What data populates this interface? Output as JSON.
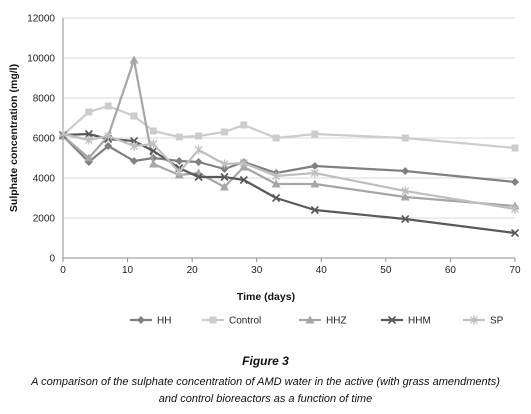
{
  "figure": {
    "title": "Figure 3",
    "caption_line1": "A comparison of the sulphate concentration of AMD water in the active (with grass amendments)",
    "caption_line2": "and control bioreactors as a function of time"
  },
  "chart_data": {
    "type": "line",
    "xlabel": "Time (days)",
    "ylabel": "Sulphate concentration (mg/l)",
    "xlim": [
      0,
      70
    ],
    "ylim": [
      0,
      12000
    ],
    "x_ticks": [
      0,
      10,
      20,
      30,
      40,
      50,
      60,
      70
    ],
    "y_ticks": [
      0,
      2000,
      4000,
      6000,
      8000,
      10000,
      12000
    ],
    "grid": "horizontal",
    "legend_position": "bottom",
    "series": [
      {
        "name": "HH",
        "color": "#808080",
        "marker": "diamond",
        "x": [
          0,
          4,
          7,
          11,
          14,
          18,
          21,
          25,
          28,
          33,
          39,
          53,
          70
        ],
        "y": [
          6100,
          4800,
          5600,
          4850,
          5000,
          4850,
          4800,
          4450,
          4800,
          4250,
          4600,
          4350,
          3800
        ]
      },
      {
        "name": "Control",
        "color": "#cccccc",
        "marker": "square",
        "x": [
          0,
          4,
          7,
          11,
          14,
          18,
          21,
          25,
          28,
          33,
          39,
          53,
          70
        ],
        "y": [
          6150,
          7300,
          7600,
          7100,
          6350,
          6050,
          6100,
          6300,
          6650,
          6000,
          6200,
          6000,
          5500
        ]
      },
      {
        "name": "HHZ",
        "color": "#a6a6a6",
        "marker": "triangle",
        "x": [
          0,
          4,
          7,
          11,
          14,
          18,
          21,
          25,
          28,
          33,
          39,
          53,
          70
        ],
        "y": [
          6100,
          5000,
          6100,
          9900,
          4700,
          4150,
          4250,
          3550,
          4550,
          3700,
          3700,
          3050,
          2600
        ]
      },
      {
        "name": "HHM",
        "color": "#595959",
        "marker": "x",
        "x": [
          0,
          4,
          7,
          11,
          14,
          18,
          21,
          25,
          28,
          33,
          39,
          53,
          70
        ],
        "y": [
          6150,
          6200,
          5950,
          5850,
          5350,
          4500,
          4050,
          4050,
          3900,
          3000,
          2400,
          1950,
          1250
        ]
      },
      {
        "name": "SP",
        "color": "#bfbfbf",
        "marker": "star",
        "x": [
          0,
          4,
          7,
          11,
          14,
          18,
          21,
          25,
          28,
          33,
          39,
          53,
          70
        ],
        "y": [
          6200,
          5900,
          6100,
          5600,
          5700,
          4300,
          5400,
          4700,
          4750,
          4100,
          4250,
          3350,
          2450
        ]
      }
    ]
  }
}
